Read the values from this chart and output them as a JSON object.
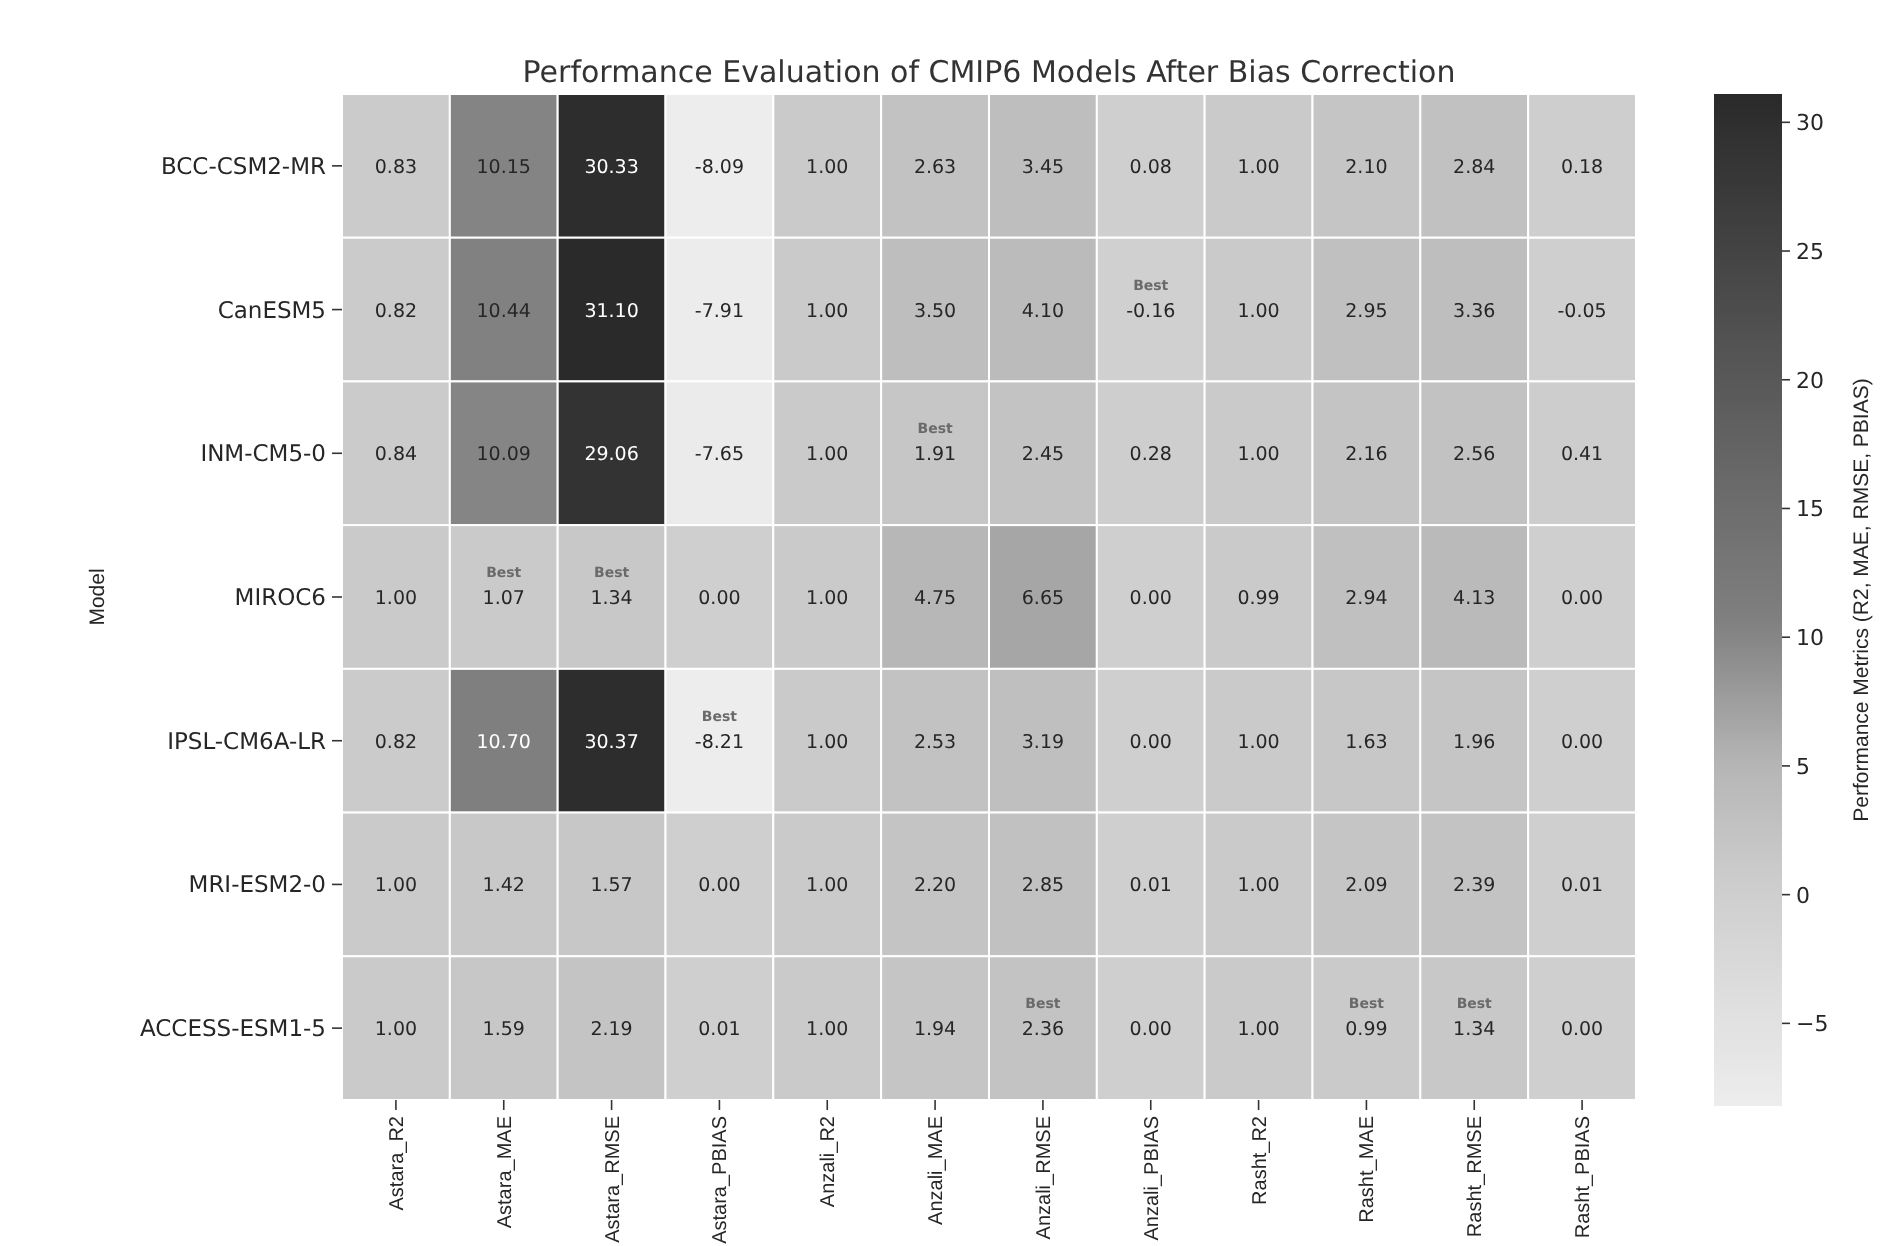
{
  "chart_data": {
    "type": "heatmap",
    "title": "Performance Evaluation of CMIP6 Models After Bias Correction",
    "ylabel": "Model",
    "clabel": "Performance Metrics (R2, MAE, RMSE, PBIAS)",
    "categories": [
      "Astara_R2",
      "Astara_MAE",
      "Astara_RMSE",
      "Astara_PBIAS",
      "Anzali_R2",
      "Anzali_MAE",
      "Anzali_RMSE",
      "Anzali_PBIAS",
      "Rasht_R2",
      "Rasht_MAE",
      "Rasht_RMSE",
      "Rasht_PBIAS"
    ],
    "y_categories": [
      "BCC-CSM2-MR",
      "CanESM5",
      "INM-CM5-0",
      "MIROC6",
      "IPSL-CM6A-LR",
      "MRI-ESM2-0",
      "ACCESS-ESM1-5"
    ],
    "cells": [
      [
        0.83,
        10.15,
        30.33,
        -8.09,
        1.0,
        2.63,
        3.45,
        0.08,
        1.0,
        2.1,
        2.84,
        0.18
      ],
      [
        0.82,
        10.44,
        31.1,
        -7.91,
        1.0,
        3.5,
        4.1,
        -0.16,
        1.0,
        2.95,
        3.36,
        -0.05
      ],
      [
        0.84,
        10.09,
        29.06,
        -7.65,
        1.0,
        1.91,
        2.45,
        0.28,
        1.0,
        2.16,
        2.56,
        0.41
      ],
      [
        1.0,
        1.07,
        1.34,
        0.0,
        1.0,
        4.75,
        6.65,
        0.0,
        0.99,
        2.94,
        4.13,
        0.0
      ],
      [
        0.82,
        10.7,
        30.37,
        -8.21,
        1.0,
        2.53,
        3.19,
        0.0,
        1.0,
        1.63,
        1.96,
        0.0
      ],
      [
        1.0,
        1.42,
        1.57,
        0.0,
        1.0,
        2.2,
        2.85,
        0.01,
        1.0,
        2.09,
        2.39,
        0.01
      ],
      [
        1.0,
        1.59,
        2.19,
        0.01,
        1.0,
        1.94,
        2.36,
        0.0,
        1.0,
        0.99,
        1.34,
        0.0
      ]
    ],
    "cell_labels": [
      [
        "0.83",
        "10.15",
        "30.33",
        "-8.09",
        "1.00",
        "2.63",
        "3.45",
        "0.08",
        "1.00",
        "2.10",
        "2.84",
        "0.18"
      ],
      [
        "0.82",
        "10.44",
        "31.10",
        "-7.91",
        "1.00",
        "3.50",
        "4.10",
        "Best\n-0.16",
        "1.00",
        "2.95",
        "3.36",
        "-0.05"
      ],
      [
        "0.84",
        "10.09",
        "29.06",
        "-7.65",
        "1.00",
        "Best\n1.91",
        "2.45",
        "0.28",
        "1.00",
        "2.16",
        "2.56",
        "0.41"
      ],
      [
        "1.00",
        "Best\n1.07",
        "Best\n1.34",
        "0.00",
        "1.00",
        "4.75",
        "6.65",
        "0.00",
        "0.99",
        "2.94",
        "4.13",
        "0.00"
      ],
      [
        "0.82",
        "10.70",
        "30.37",
        "Best\n-8.21",
        "1.00",
        "2.53",
        "3.19",
        "0.00",
        "1.00",
        "1.63",
        "1.96",
        "0.00"
      ],
      [
        "1.00",
        "1.42",
        "1.57",
        "0.00",
        "1.00",
        "2.20",
        "2.85",
        "0.01",
        "1.00",
        "2.09",
        "2.39",
        "0.01"
      ],
      [
        "1.00",
        "1.59",
        "2.19",
        "0.01",
        "1.00",
        "1.94",
        "Best\n2.36",
        "0.00",
        "1.00",
        "Best\n0.99",
        "Best\n1.34",
        "0.00"
      ]
    ],
    "clim": [
      -8.21,
      31.1
    ],
    "cticks": [
      {
        "value": -5,
        "label": "−5"
      },
      0,
      5,
      10,
      15,
      20,
      25,
      30
    ]
  }
}
